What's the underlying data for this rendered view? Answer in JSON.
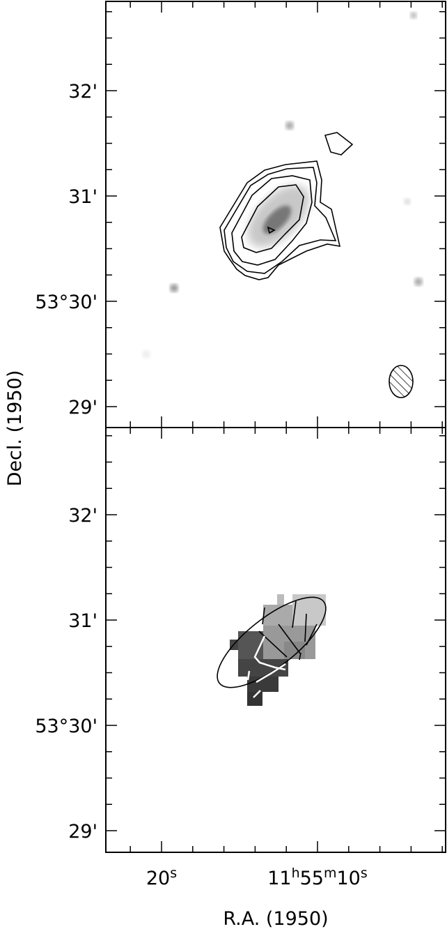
{
  "figure": {
    "y_axis_label": "Decl. (1950)",
    "x_axis_label": "R.A. (1950)",
    "panels": [
      {
        "y_tick_labels": [
          "32'",
          "31'",
          "53°30'",
          "29'"
        ]
      },
      {
        "y_tick_labels": [
          "32'",
          "31'",
          "53°30'",
          "29'"
        ],
        "x_tick_labels": [
          [
            {
              "text": "20"
            },
            {
              "text": "s",
              "sup": true
            }
          ],
          [
            {
              "text": "11"
            },
            {
              "text": "h",
              "sup": true
            },
            {
              "text": "55"
            },
            {
              "text": "m",
              "sup": true
            },
            {
              "text": "10"
            },
            {
              "text": "s",
              "sup": true
            }
          ]
        ]
      }
    ]
  }
}
